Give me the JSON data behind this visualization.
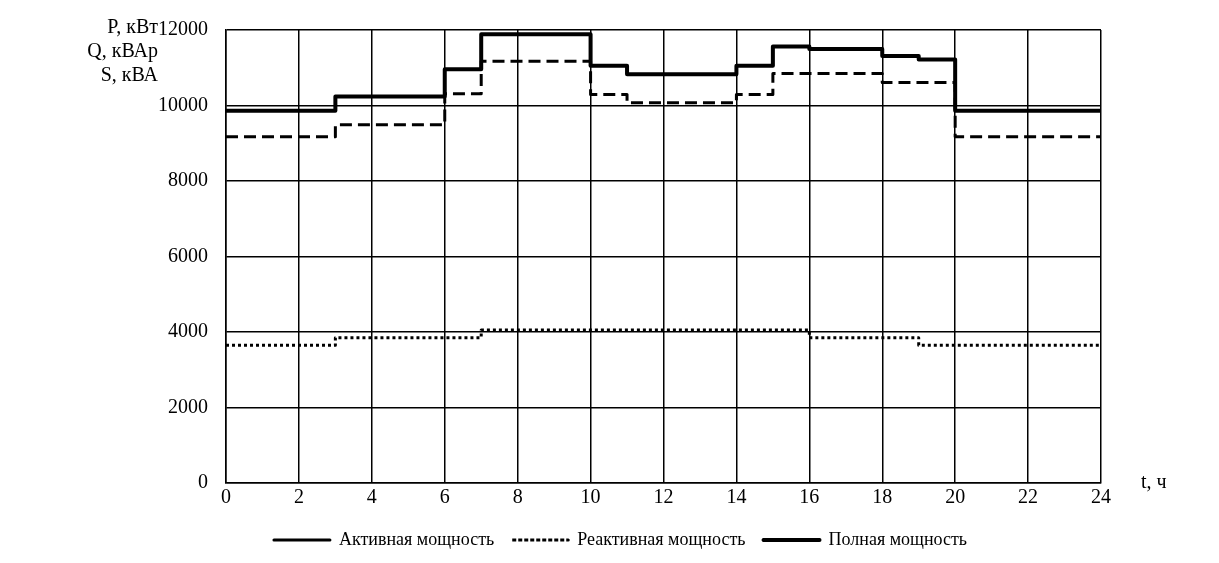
{
  "chart_data": {
    "type": "step",
    "xlabel": "t, ч",
    "ylabel": "P, кВт\nQ, кВАр\nS, кВА",
    "xlim": [
      0,
      24
    ],
    "xticks": [
      0,
      2,
      4,
      6,
      8,
      10,
      12,
      14,
      16,
      18,
      20,
      22,
      24
    ],
    "ylim": [
      0,
      12000
    ],
    "yticks": [
      0,
      2000,
      4000,
      6000,
      8000,
      10000,
      12000
    ],
    "grid": true,
    "legend": "bottom",
    "marker": "none",
    "series": [
      {
        "name": "Активная мощность",
        "color": "#000000",
        "line_style": "dashed",
        "x": [
          0,
          3,
          6,
          7,
          10,
          11,
          14,
          15,
          18,
          20,
          24
        ],
        "values": [
          9170,
          9490,
          10310,
          11170,
          10290,
          10070,
          10290,
          10850,
          10610,
          9170,
          9170
        ]
      },
      {
        "name": "Реактивная мощность",
        "color": "#000000",
        "line_style": "dotted",
        "x": [
          0,
          3,
          7,
          16,
          19,
          24
        ],
        "values": [
          3650,
          3850,
          4050,
          3850,
          3650,
          3650
        ]
      },
      {
        "name": "Полная мощность",
        "color": "#000000",
        "line_style": "solid",
        "x": [
          0,
          3,
          6,
          7,
          10,
          11,
          14,
          15,
          16,
          18,
          19,
          20,
          24
        ],
        "values": [
          9860,
          10240,
          10960,
          11890,
          11050,
          10830,
          11050,
          11560,
          11500,
          11310,
          11220,
          9860,
          9860
        ]
      }
    ]
  }
}
